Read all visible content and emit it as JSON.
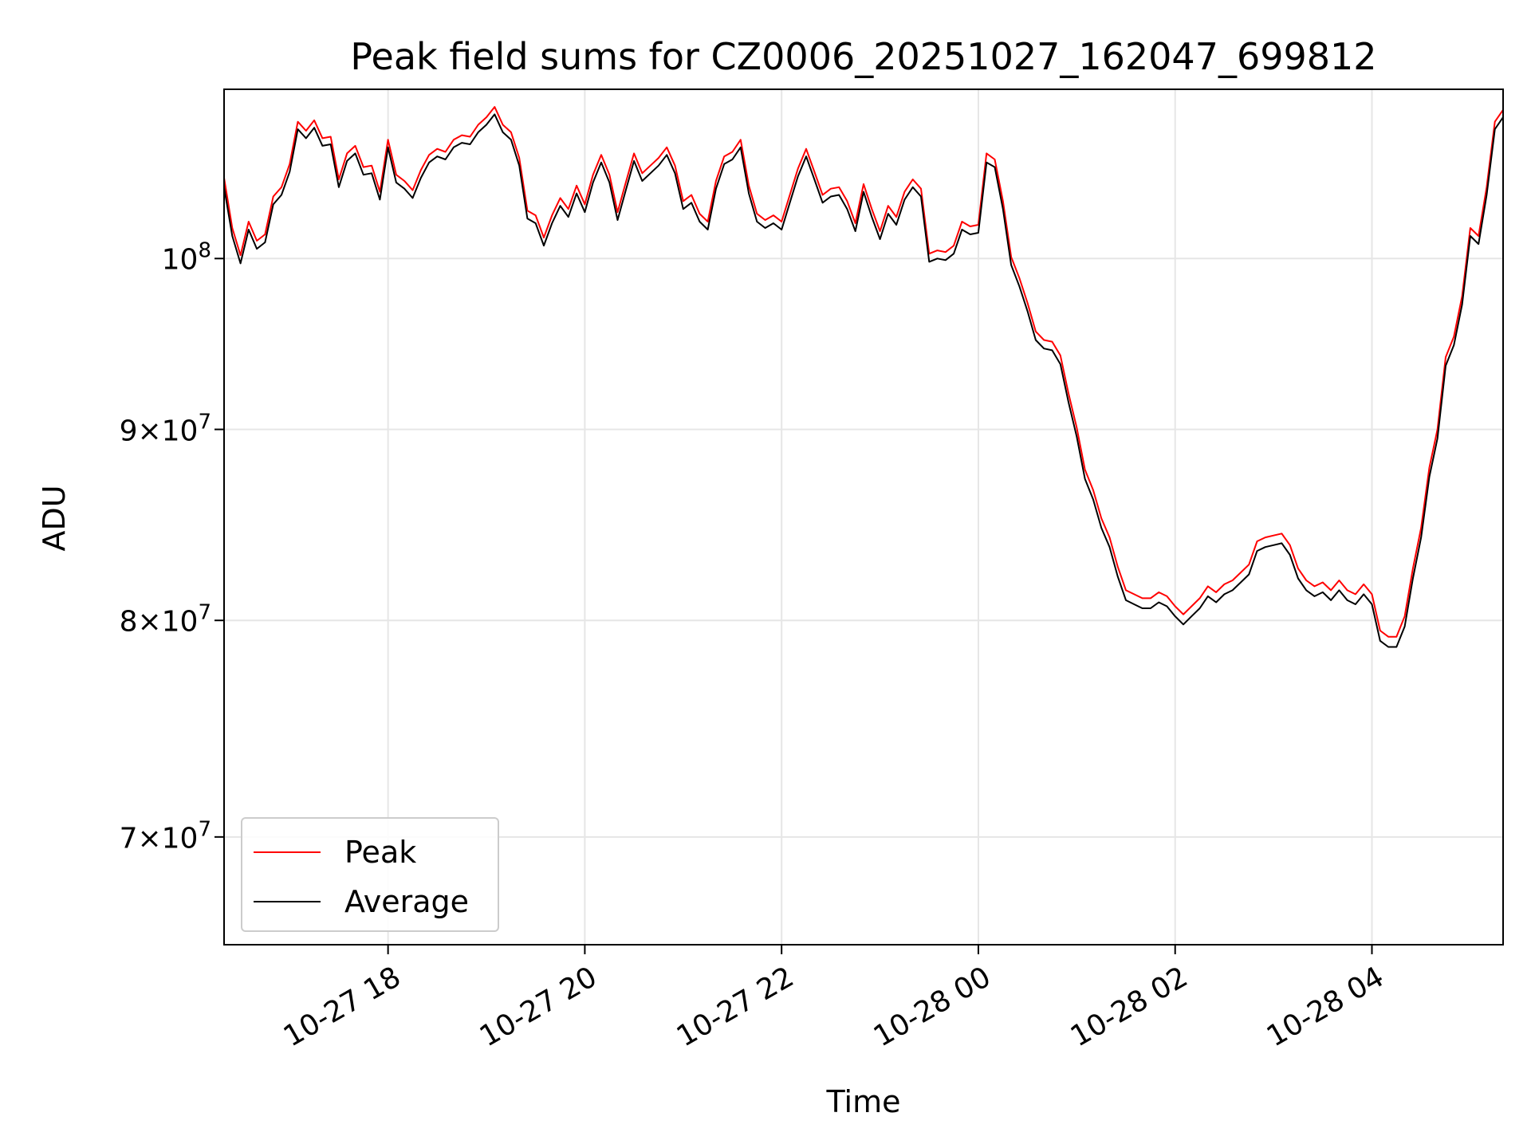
{
  "chart_data": {
    "type": "line",
    "title": "Peak field sums for CZ0006_20251027_162047_699812",
    "xlabel": "Time",
    "ylabel": "ADU",
    "yscale": "log",
    "grid": true,
    "legend_position": "lower-left",
    "xlim": [
      "2025-10-27 16:20",
      "2025-10-28 05:20"
    ],
    "ylim": [
      65500000,
      111000000
    ],
    "x_ticks": [
      "10-27 18",
      "10-27 20",
      "10-27 22",
      "10-28 00",
      "10-28 02",
      "10-28 04"
    ],
    "x_tick_times": [
      "2025-10-27 18:00",
      "2025-10-27 20:00",
      "2025-10-27 22:00",
      "2025-10-28 00:00",
      "2025-10-28 02:00",
      "2025-10-28 04:00"
    ],
    "y_ticks": [
      {
        "value": 70000000,
        "mantissa": "7",
        "exponent": "7"
      },
      {
        "value": 80000000,
        "mantissa": "8",
        "exponent": "7"
      },
      {
        "value": 90000000,
        "mantissa": "9",
        "exponent": "7"
      },
      {
        "value": 100000000,
        "mantissa": "",
        "exponent": "8"
      }
    ],
    "x": [
      "2025-10-27 16:20",
      "2025-10-27 16:25",
      "2025-10-27 16:30",
      "2025-10-27 16:35",
      "2025-10-27 16:40",
      "2025-10-27 16:45",
      "2025-10-27 16:50",
      "2025-10-27 16:55",
      "2025-10-27 17:00",
      "2025-10-27 17:05",
      "2025-10-27 17:10",
      "2025-10-27 17:15",
      "2025-10-27 17:20",
      "2025-10-27 17:25",
      "2025-10-27 17:30",
      "2025-10-27 17:35",
      "2025-10-27 17:40",
      "2025-10-27 17:45",
      "2025-10-27 17:50",
      "2025-10-27 17:55",
      "2025-10-27 18:00",
      "2025-10-27 18:05",
      "2025-10-27 18:10",
      "2025-10-27 18:15",
      "2025-10-27 18:20",
      "2025-10-27 18:25",
      "2025-10-27 18:30",
      "2025-10-27 18:35",
      "2025-10-27 18:40",
      "2025-10-27 18:45",
      "2025-10-27 18:50",
      "2025-10-27 18:55",
      "2025-10-27 19:00",
      "2025-10-27 19:05",
      "2025-10-27 19:10",
      "2025-10-27 19:15",
      "2025-10-27 19:20",
      "2025-10-27 19:25",
      "2025-10-27 19:30",
      "2025-10-27 19:35",
      "2025-10-27 19:40",
      "2025-10-27 19:45",
      "2025-10-27 19:50",
      "2025-10-27 19:55",
      "2025-10-27 20:00",
      "2025-10-27 20:05",
      "2025-10-27 20:10",
      "2025-10-27 20:15",
      "2025-10-27 20:20",
      "2025-10-27 20:25",
      "2025-10-27 20:30",
      "2025-10-27 20:35",
      "2025-10-27 20:40",
      "2025-10-27 20:45",
      "2025-10-27 20:50",
      "2025-10-27 20:55",
      "2025-10-27 21:00",
      "2025-10-27 21:05",
      "2025-10-27 21:10",
      "2025-10-27 21:15",
      "2025-10-27 21:20",
      "2025-10-27 21:25",
      "2025-10-27 21:30",
      "2025-10-27 21:35",
      "2025-10-27 21:40",
      "2025-10-27 21:45",
      "2025-10-27 21:50",
      "2025-10-27 21:55",
      "2025-10-27 22:00",
      "2025-10-27 22:05",
      "2025-10-27 22:10",
      "2025-10-27 22:15",
      "2025-10-27 22:20",
      "2025-10-27 22:25",
      "2025-10-27 22:30",
      "2025-10-27 22:35",
      "2025-10-27 22:40",
      "2025-10-27 22:45",
      "2025-10-27 22:50",
      "2025-10-27 22:55",
      "2025-10-27 23:00",
      "2025-10-27 23:05",
      "2025-10-27 23:10",
      "2025-10-27 23:15",
      "2025-10-27 23:20",
      "2025-10-27 23:25",
      "2025-10-27 23:30",
      "2025-10-27 23:35",
      "2025-10-27 23:40",
      "2025-10-27 23:45",
      "2025-10-27 23:50",
      "2025-10-27 23:55",
      "2025-10-28 00:00",
      "2025-10-28 00:05",
      "2025-10-28 00:10",
      "2025-10-28 00:15",
      "2025-10-28 00:20",
      "2025-10-28 00:25",
      "2025-10-28 00:30",
      "2025-10-28 00:35",
      "2025-10-28 00:40",
      "2025-10-28 00:45",
      "2025-10-28 00:50",
      "2025-10-28 00:55",
      "2025-10-28 01:00",
      "2025-10-28 01:05",
      "2025-10-28 01:10",
      "2025-10-28 01:15",
      "2025-10-28 01:20",
      "2025-10-28 01:25",
      "2025-10-28 01:30",
      "2025-10-28 01:35",
      "2025-10-28 01:40",
      "2025-10-28 01:45",
      "2025-10-28 01:50",
      "2025-10-28 01:55",
      "2025-10-28 02:00",
      "2025-10-28 02:05",
      "2025-10-28 02:10",
      "2025-10-28 02:15",
      "2025-10-28 02:20",
      "2025-10-28 02:25",
      "2025-10-28 02:30",
      "2025-10-28 02:35",
      "2025-10-28 02:40",
      "2025-10-28 02:45",
      "2025-10-28 02:50",
      "2025-10-28 02:55",
      "2025-10-28 03:00",
      "2025-10-28 03:05",
      "2025-10-28 03:10",
      "2025-10-28 03:15",
      "2025-10-28 03:20",
      "2025-10-28 03:25",
      "2025-10-28 03:30",
      "2025-10-28 03:35",
      "2025-10-28 03:40",
      "2025-10-28 03:45",
      "2025-10-28 03:50",
      "2025-10-28 03:55",
      "2025-10-28 04:00",
      "2025-10-28 04:05",
      "2025-10-28 04:10",
      "2025-10-28 04:15",
      "2025-10-28 04:20",
      "2025-10-28 04:25",
      "2025-10-28 04:30",
      "2025-10-28 04:35",
      "2025-10-28 04:40",
      "2025-10-28 04:45",
      "2025-10-28 04:50",
      "2025-10-28 04:55",
      "2025-10-28 05:00",
      "2025-10-28 05:05",
      "2025-10-28 05:10",
      "2025-10-28 05:15",
      "2025-10-28 05:20"
    ],
    "series": [
      {
        "name": "Peak",
        "color": "#ff0000",
        "values": [
          105.1,
          101.9,
          100.2,
          102.3,
          101.1,
          101.5,
          103.9,
          104.5,
          106.0,
          108.8,
          108.2,
          108.9,
          107.7,
          107.8,
          105.0,
          106.7,
          107.2,
          105.8,
          105.9,
          104.2,
          107.6,
          105.3,
          104.9,
          104.3,
          105.6,
          106.6,
          107.0,
          106.8,
          107.6,
          107.9,
          107.8,
          108.6,
          109.1,
          109.8,
          108.6,
          108.1,
          106.4,
          103.0,
          102.7,
          101.3,
          102.7,
          103.8,
          103.1,
          104.6,
          103.4,
          105.3,
          106.6,
          105.3,
          102.9,
          104.8,
          106.7,
          105.4,
          105.9,
          106.4,
          107.1,
          105.9,
          103.6,
          104.0,
          102.8,
          102.3,
          104.9,
          106.5,
          106.8,
          107.6,
          104.6,
          102.8,
          102.4,
          102.7,
          102.3,
          104.0,
          105.7,
          107.0,
          105.5,
          104.0,
          104.4,
          104.5,
          103.6,
          102.2,
          104.7,
          103.1,
          101.7,
          103.3,
          102.6,
          104.2,
          105.0,
          104.4,
          100.3,
          100.5,
          100.4,
          100.8,
          102.3,
          102.0,
          102.1,
          106.7,
          106.3,
          103.6,
          100.1,
          98.8,
          97.3,
          95.6,
          95.1,
          95.0,
          94.2,
          92.0,
          90.1,
          87.8,
          86.7,
          85.2,
          84.2,
          82.7,
          81.5,
          81.3,
          81.1,
          81.1,
          81.4,
          81.2,
          80.7,
          80.3,
          80.7,
          81.1,
          81.7,
          81.4,
          81.8,
          82.0,
          82.4,
          82.8,
          84.0,
          84.2,
          84.3,
          84.4,
          83.8,
          82.6,
          82.0,
          81.7,
          81.9,
          81.5,
          82.0,
          81.5,
          81.3,
          81.8,
          81.3,
          79.5,
          79.2,
          79.2,
          80.2,
          82.6,
          84.7,
          87.9,
          90.0,
          94.1,
          95.3,
          97.7,
          101.9,
          101.4,
          104.5,
          108.8,
          109.6
        ]
      },
      {
        "name": "Average",
        "color": "#000000",
        "values": [
          104.5,
          101.4,
          99.7,
          101.8,
          100.6,
          101.0,
          103.4,
          104.0,
          105.5,
          108.3,
          107.7,
          108.4,
          107.2,
          107.3,
          104.5,
          106.2,
          106.7,
          105.3,
          105.4,
          103.7,
          107.1,
          104.8,
          104.4,
          103.8,
          105.1,
          106.1,
          106.5,
          106.3,
          107.1,
          107.4,
          107.3,
          108.1,
          108.6,
          109.3,
          108.1,
          107.6,
          105.9,
          102.5,
          102.2,
          100.8,
          102.2,
          103.3,
          102.6,
          104.1,
          102.9,
          104.8,
          106.1,
          104.8,
          102.4,
          104.3,
          106.2,
          104.9,
          105.4,
          105.9,
          106.6,
          105.4,
          103.1,
          103.5,
          102.3,
          101.8,
          104.4,
          106.0,
          106.3,
          107.1,
          104.1,
          102.3,
          101.9,
          102.2,
          101.8,
          103.5,
          105.2,
          106.5,
          105.0,
          103.5,
          103.9,
          104.0,
          103.1,
          101.7,
          104.2,
          102.6,
          101.2,
          102.8,
          102.1,
          103.7,
          104.5,
          103.9,
          99.8,
          100.0,
          99.9,
          100.3,
          101.8,
          101.5,
          101.6,
          106.1,
          105.8,
          103.1,
          99.6,
          98.3,
          96.8,
          95.1,
          94.6,
          94.5,
          93.7,
          91.5,
          89.6,
          87.3,
          86.2,
          84.7,
          83.7,
          82.2,
          81.0,
          80.8,
          80.6,
          80.6,
          80.9,
          80.7,
          80.2,
          79.8,
          80.2,
          80.6,
          81.2,
          80.9,
          81.3,
          81.5,
          81.9,
          82.3,
          83.5,
          83.7,
          83.8,
          83.9,
          83.3,
          82.1,
          81.5,
          81.2,
          81.4,
          81.0,
          81.5,
          81.0,
          80.8,
          81.3,
          80.8,
          79.0,
          78.7,
          78.7,
          79.7,
          82.1,
          84.2,
          87.4,
          89.5,
          93.6,
          94.8,
          97.2,
          101.4,
          100.9,
          104.0,
          108.3,
          109.1
        ]
      }
    ],
    "value_units": "millions of ADU"
  }
}
